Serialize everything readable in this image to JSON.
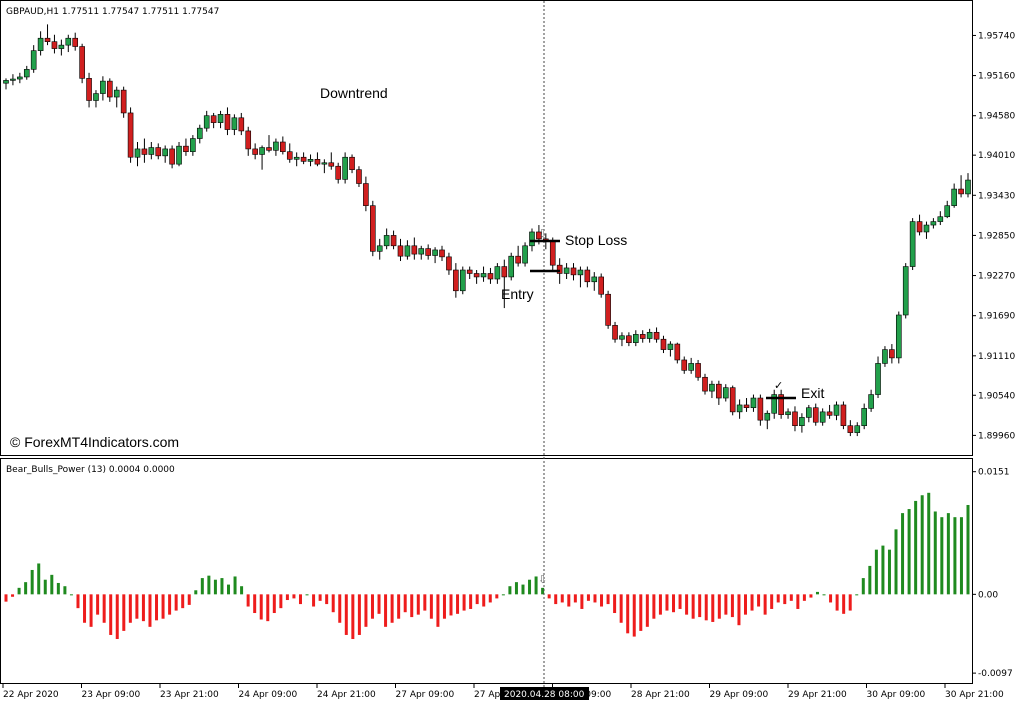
{
  "chart_data": [
    {
      "type": "candlestick",
      "header": "GBPAUD,H1  1.77511 1.77547 1.77511 1.77547",
      "y_ticks": [
        "1.95740",
        "1.95160",
        "1.94580",
        "1.94010",
        "1.93430",
        "1.92850",
        "1.92270",
        "1.91690",
        "1.91110",
        "1.90540",
        "1.89960"
      ],
      "ylim": [
        1.8972,
        1.9618
      ],
      "colors": {
        "bull": "#22a04b",
        "bear": "#d11f1f"
      },
      "annotations": {
        "trend": "Downtrend",
        "stop_loss": "Stop Loss",
        "entry": "Entry",
        "exit": "Exit",
        "watermark": "© ForexMT4Indicators.com"
      },
      "ohlc": [
        [
          1.9505,
          1.9512,
          1.9496,
          1.9509
        ],
        [
          1.9509,
          1.9518,
          1.9502,
          1.9511
        ],
        [
          1.9511,
          1.952,
          1.9505,
          1.9514
        ],
        [
          1.9514,
          1.953,
          1.951,
          1.9525
        ],
        [
          1.9525,
          1.956,
          1.952,
          1.9552
        ],
        [
          1.9552,
          1.958,
          1.9545,
          1.957
        ],
        [
          1.957,
          1.959,
          1.956,
          1.9565
        ],
        [
          1.9565,
          1.9575,
          1.9548,
          1.9555
        ],
        [
          1.9555,
          1.9568,
          1.9545,
          1.956
        ],
        [
          1.956,
          1.9575,
          1.955,
          1.957
        ],
        [
          1.957,
          1.9578,
          1.9552,
          1.9558
        ],
        [
          1.9558,
          1.9562,
          1.9505,
          1.9512
        ],
        [
          1.9512,
          1.952,
          1.947,
          1.948
        ],
        [
          1.948,
          1.9495,
          1.947,
          1.949
        ],
        [
          1.949,
          1.9515,
          1.948,
          1.9508
        ],
        [
          1.9508,
          1.9512,
          1.9478,
          1.9485
        ],
        [
          1.9485,
          1.95,
          1.947,
          1.9495
        ],
        [
          1.9495,
          1.95,
          1.9455,
          1.9462
        ],
        [
          1.9462,
          1.947,
          1.939,
          1.9398
        ],
        [
          1.9398,
          1.942,
          1.9385,
          1.941
        ],
        [
          1.941,
          1.9425,
          1.939,
          1.9402
        ],
        [
          1.9402,
          1.942,
          1.9395,
          1.9412
        ],
        [
          1.9412,
          1.9418,
          1.9395,
          1.94
        ],
        [
          1.94,
          1.9415,
          1.939,
          1.941
        ],
        [
          1.941,
          1.9415,
          1.9382,
          1.9388
        ],
        [
          1.9388,
          1.942,
          1.9385,
          1.9414
        ],
        [
          1.9414,
          1.9425,
          1.94,
          1.9406
        ],
        [
          1.9406,
          1.943,
          1.94,
          1.9425
        ],
        [
          1.9425,
          1.9445,
          1.9418,
          1.944
        ],
        [
          1.944,
          1.9465,
          1.9435,
          1.9458
        ],
        [
          1.9458,
          1.9462,
          1.944,
          1.9448
        ],
        [
          1.9448,
          1.9465,
          1.944,
          1.946
        ],
        [
          1.946,
          1.947,
          1.943,
          1.9438
        ],
        [
          1.9438,
          1.946,
          1.943,
          1.9455
        ],
        [
          1.9455,
          1.9462,
          1.943,
          1.9436
        ],
        [
          1.9436,
          1.9442,
          1.94,
          1.941
        ],
        [
          1.941,
          1.9418,
          1.9395,
          1.9402
        ],
        [
          1.9402,
          1.9415,
          1.938,
          1.9412
        ],
        [
          1.9412,
          1.943,
          1.9405,
          1.9408
        ],
        [
          1.9408,
          1.9425,
          1.94,
          1.942
        ],
        [
          1.942,
          1.9428,
          1.9402,
          1.9406
        ],
        [
          1.9406,
          1.9418,
          1.939,
          1.9395
        ],
        [
          1.9395,
          1.9405,
          1.9385,
          1.9398
        ],
        [
          1.9398,
          1.9405,
          1.9388,
          1.9392
        ],
        [
          1.9392,
          1.9402,
          1.9385,
          1.9395
        ],
        [
          1.9395,
          1.9405,
          1.9385,
          1.9388
        ],
        [
          1.9388,
          1.9395,
          1.9375,
          1.939
        ],
        [
          1.939,
          1.9405,
          1.938,
          1.9385
        ],
        [
          1.9385,
          1.939,
          1.936,
          1.9366
        ],
        [
          1.9366,
          1.9405,
          1.936,
          1.9398
        ],
        [
          1.9398,
          1.9402,
          1.9375,
          1.938
        ],
        [
          1.938,
          1.9385,
          1.9355,
          1.936
        ],
        [
          1.936,
          1.937,
          1.932,
          1.9328
        ],
        [
          1.9328,
          1.9335,
          1.9255,
          1.9262
        ],
        [
          1.9262,
          1.928,
          1.925,
          1.927
        ],
        [
          1.927,
          1.9295,
          1.9265,
          1.9285
        ],
        [
          1.9285,
          1.9292,
          1.9265,
          1.927
        ],
        [
          1.927,
          1.928,
          1.9248,
          1.9255
        ],
        [
          1.9255,
          1.9278,
          1.925,
          1.927
        ],
        [
          1.927,
          1.9282,
          1.925,
          1.9258
        ],
        [
          1.9258,
          1.927,
          1.925,
          1.9266
        ],
        [
          1.9266,
          1.9272,
          1.925,
          1.9256
        ],
        [
          1.9256,
          1.9268,
          1.9245,
          1.9264
        ],
        [
          1.9264,
          1.927,
          1.9248,
          1.9254
        ],
        [
          1.9254,
          1.926,
          1.9228,
          1.9235
        ],
        [
          1.9235,
          1.9245,
          1.9195,
          1.9205
        ],
        [
          1.9205,
          1.924,
          1.92,
          1.9235
        ],
        [
          1.9235,
          1.924,
          1.9222,
          1.923
        ],
        [
          1.923,
          1.9235,
          1.9215,
          1.9225
        ],
        [
          1.9225,
          1.924,
          1.9218,
          1.923
        ],
        [
          1.923,
          1.9238,
          1.9215,
          1.9222
        ],
        [
          1.9222,
          1.9245,
          1.9215,
          1.924
        ],
        [
          1.924,
          1.925,
          1.918,
          1.9225
        ],
        [
          1.9225,
          1.926,
          1.922,
          1.9255
        ],
        [
          1.9255,
          1.927,
          1.924,
          1.9245
        ],
        [
          1.9245,
          1.9275,
          1.924,
          1.927
        ],
        [
          1.927,
          1.9295,
          1.9262,
          1.929
        ],
        [
          1.929,
          1.93,
          1.9272,
          1.928
        ],
        [
          1.928,
          1.9288,
          1.9265,
          1.9278
        ],
        [
          1.9278,
          1.9282,
          1.9235,
          1.9242
        ],
        [
          1.9242,
          1.9252,
          1.9215,
          1.923
        ],
        [
          1.923,
          1.9245,
          1.9222,
          1.9238
        ],
        [
          1.9238,
          1.9245,
          1.922,
          1.9228
        ],
        [
          1.9228,
          1.924,
          1.921,
          1.9235
        ],
        [
          1.9235,
          1.924,
          1.921,
          1.9218
        ],
        [
          1.9218,
          1.9232,
          1.9205,
          1.9225
        ],
        [
          1.9225,
          1.923,
          1.9195,
          1.92
        ],
        [
          1.92,
          1.9205,
          1.915,
          1.9155
        ],
        [
          1.9155,
          1.916,
          1.913,
          1.9135
        ],
        [
          1.9135,
          1.9145,
          1.9125,
          1.914
        ],
        [
          1.914,
          1.9145,
          1.9125,
          1.913
        ],
        [
          1.913,
          1.9148,
          1.9125,
          1.9142
        ],
        [
          1.9142,
          1.9148,
          1.913,
          1.9136
        ],
        [
          1.9136,
          1.915,
          1.913,
          1.9145
        ],
        [
          1.9145,
          1.9152,
          1.913,
          1.9135
        ],
        [
          1.9135,
          1.914,
          1.9115,
          1.912
        ],
        [
          1.912,
          1.9132,
          1.911,
          1.9128
        ],
        [
          1.9128,
          1.913,
          1.91,
          1.9105
        ],
        [
          1.9105,
          1.911,
          1.9085,
          1.909
        ],
        [
          1.909,
          1.9108,
          1.9085,
          1.91
        ],
        [
          1.91,
          1.9105,
          1.9075,
          1.908
        ],
        [
          1.908,
          1.9085,
          1.9055,
          1.906
        ],
        [
          1.906,
          1.9075,
          1.905,
          1.907
        ],
        [
          1.907,
          1.9075,
          1.904,
          1.905
        ],
        [
          1.905,
          1.907,
          1.9045,
          1.9065
        ],
        [
          1.9065,
          1.9068,
          1.9025,
          1.903
        ],
        [
          1.903,
          1.9048,
          1.902,
          1.904
        ],
        [
          1.904,
          1.905,
          1.903,
          1.9036
        ],
        [
          1.9036,
          1.9055,
          1.903,
          1.905
        ],
        [
          1.905,
          1.9055,
          1.901,
          1.9018
        ],
        [
          1.9018,
          1.9032,
          1.9005,
          1.9028
        ],
        [
          1.9028,
          1.9062,
          1.902,
          1.9055
        ],
        [
          1.9055,
          1.9062,
          1.902,
          1.9026
        ],
        [
          1.9026,
          1.9035,
          1.902,
          1.903
        ],
        [
          1.903,
          1.9038,
          1.9002,
          1.901
        ],
        [
          1.901,
          1.9028,
          1.9,
          1.9022
        ],
        [
          1.9022,
          1.904,
          1.9015,
          1.9036
        ],
        [
          1.9036,
          1.9042,
          1.901,
          1.9015
        ],
        [
          1.9015,
          1.9035,
          1.901,
          1.903
        ],
        [
          1.903,
          1.904,
          1.902,
          1.9025
        ],
        [
          1.9025,
          1.9045,
          1.9018,
          1.904
        ],
        [
          1.904,
          1.9045,
          1.9005,
          1.901
        ],
        [
          1.901,
          1.9018,
          1.8995,
          1.9
        ],
        [
          1.9,
          1.9015,
          1.8995,
          1.901
        ],
        [
          1.901,
          1.9042,
          1.9005,
          1.9035
        ],
        [
          1.9035,
          1.9062,
          1.903,
          1.9055
        ],
        [
          1.9055,
          1.911,
          1.905,
          1.91
        ],
        [
          1.91,
          1.9125,
          1.9095,
          1.912
        ],
        [
          1.912,
          1.9128,
          1.91,
          1.9108
        ],
        [
          1.9108,
          1.9175,
          1.91,
          1.917
        ],
        [
          1.917,
          1.9245,
          1.9165,
          1.924
        ],
        [
          1.924,
          1.931,
          1.9235,
          1.9305
        ],
        [
          1.9305,
          1.9315,
          1.9285,
          1.929
        ],
        [
          1.929,
          1.9305,
          1.928,
          1.93
        ],
        [
          1.93,
          1.931,
          1.9295,
          1.9305
        ],
        [
          1.9305,
          1.932,
          1.93,
          1.9312
        ],
        [
          1.9312,
          1.9335,
          1.931,
          1.9328
        ],
        [
          1.9328,
          1.936,
          1.9325,
          1.9352
        ],
        [
          1.9352,
          1.9372,
          1.934,
          1.9345
        ],
        [
          1.9345,
          1.9375,
          1.934,
          1.9365
        ]
      ]
    },
    {
      "type": "histogram",
      "header": "Bear_Bulls_Power (13)  0.0004 0.0000",
      "y_ticks": [
        "0.0151",
        "0.00",
        "-0.0097"
      ],
      "ylim": [
        -0.0103,
        0.0158
      ],
      "colors": {
        "positive": "#1f8a1f",
        "negative": "#ee1c1c"
      },
      "values": [
        -0.0009,
        -0.0003,
        0.0008,
        0.0015,
        0.003,
        0.0038,
        0.0018,
        0.0024,
        0.0014,
        0.001,
        0.0,
        -0.0017,
        -0.0035,
        -0.004,
        -0.0025,
        -0.0035,
        -0.005,
        -0.0055,
        -0.0045,
        -0.0035,
        -0.003,
        -0.0033,
        -0.004,
        -0.0032,
        -0.003,
        -0.0025,
        -0.002,
        -0.0017,
        -0.0013,
        0.0005,
        0.002,
        0.0023,
        0.0018,
        0.002,
        0.0012,
        0.0022,
        0.001,
        -0.0015,
        -0.0023,
        -0.0031,
        -0.0033,
        -0.0023,
        -0.0017,
        -0.0007,
        -0.0005,
        -0.0012,
        0.0,
        -0.0015,
        -0.0008,
        -0.0012,
        -0.0022,
        -0.0035,
        -0.005,
        -0.0055,
        -0.005,
        -0.004,
        -0.003,
        -0.0024,
        -0.004,
        -0.0035,
        -0.003,
        -0.0022,
        -0.0028,
        -0.0025,
        -0.002,
        -0.003,
        -0.004,
        -0.003,
        -0.0026,
        -0.0024,
        -0.002,
        -0.0018,
        -0.0012,
        -0.0015,
        -0.001,
        -0.0005,
        0.0,
        0.001,
        0.0015,
        0.0012,
        0.0018,
        0.0022,
        0.0008,
        -0.0005,
        -0.0012,
        -0.001,
        -0.0015,
        -0.001,
        -0.0018,
        -0.0008,
        -0.001,
        -0.0015,
        -0.0012,
        -0.0023,
        -0.0035,
        -0.0048,
        -0.0052,
        -0.0045,
        -0.004,
        -0.003,
        -0.0025,
        -0.002,
        -0.0022,
        -0.0018,
        -0.0025,
        -0.003,
        -0.0028,
        -0.0032,
        -0.0034,
        -0.003,
        -0.0025,
        -0.0028,
        -0.0038,
        -0.0025,
        -0.002,
        -0.0015,
        -0.0025,
        -0.0018,
        -0.001,
        -0.0012,
        -0.0008,
        -0.0018,
        -0.0008,
        -0.0004,
        0.0003,
        0.0,
        -0.001,
        -0.002,
        -0.0024,
        -0.002,
        0.0,
        0.002,
        0.0035,
        0.0055,
        0.006,
        0.0055,
        0.008,
        0.01,
        0.0105,
        0.0115,
        0.0122,
        0.0125,
        0.0102,
        0.0095,
        0.01,
        0.0095,
        0.0095,
        0.011
      ]
    }
  ],
  "x_ticks": [
    "22 Apr 2020",
    "23 Apr 09:00",
    "23 Apr 21:00",
    "24 Apr 09:00",
    "24 Apr 21:00",
    "27 Apr 09:00",
    "27 Apr",
    "28 Apr 09:00",
    "28 Apr 21:00",
    "29 Apr 09:00",
    "29 Apr 21:00",
    "30 Apr 09:00",
    "30 Apr 21:00"
  ],
  "crosshair_label": "2020.04.28 08:00",
  "signal_marks": {
    "down_arrow": "⇩",
    "check": "✓"
  }
}
